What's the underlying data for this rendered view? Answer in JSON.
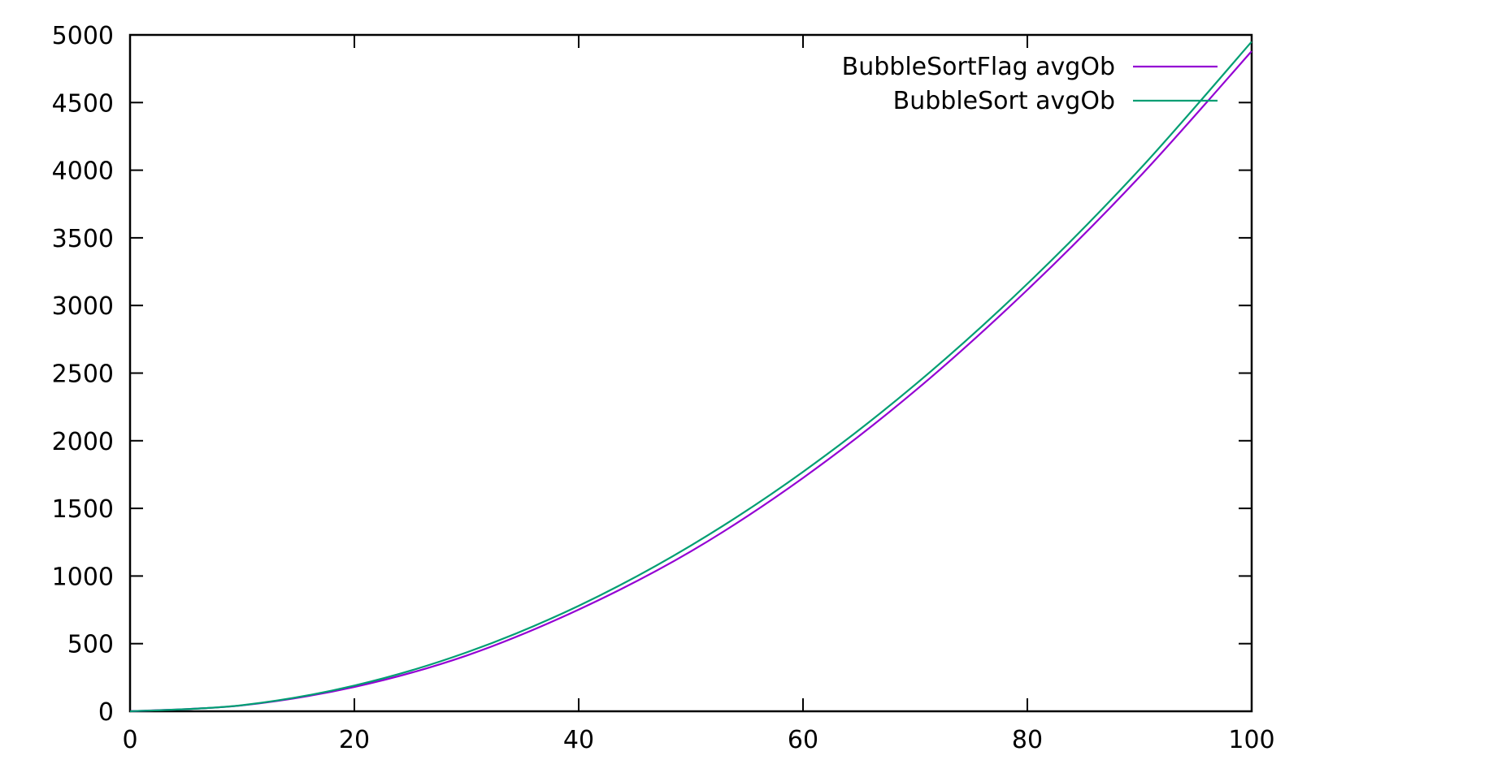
{
  "chart_data": {
    "type": "line",
    "title": "",
    "xlabel": "",
    "ylabel": "",
    "xlim": [
      0,
      100
    ],
    "ylim": [
      0,
      5000
    ],
    "x_ticks": [
      0,
      20,
      40,
      60,
      80,
      100
    ],
    "x_tick_labels": [
      "0",
      "20",
      "40",
      "60",
      "80",
      "100"
    ],
    "y_ticks": [
      0,
      500,
      1000,
      1500,
      2000,
      2500,
      3000,
      3500,
      4000,
      4500,
      5000
    ],
    "y_tick_labels": [
      "0",
      "500",
      "1000",
      "1500",
      "2000",
      "2500",
      "3000",
      "3500",
      "4000",
      "4500",
      "5000"
    ],
    "grid": false,
    "legend_position": "top-right",
    "x": [
      0,
      10,
      20,
      30,
      40,
      50,
      60,
      70,
      80,
      90,
      100
    ],
    "series": [
      {
        "name": "BubbleSortFlag avgOb",
        "color": "#9400d3",
        "values": [
          0,
          44,
          180,
          412,
          752,
          1182,
          1725,
          2370,
          3115,
          3950,
          4880
        ]
      },
      {
        "name": "BubbleSort avgOb",
        "color": "#009e73",
        "values": [
          0,
          45,
          190,
          435,
          780,
          1225,
          1770,
          2415,
          3160,
          4005,
          4950
        ]
      }
    ]
  }
}
